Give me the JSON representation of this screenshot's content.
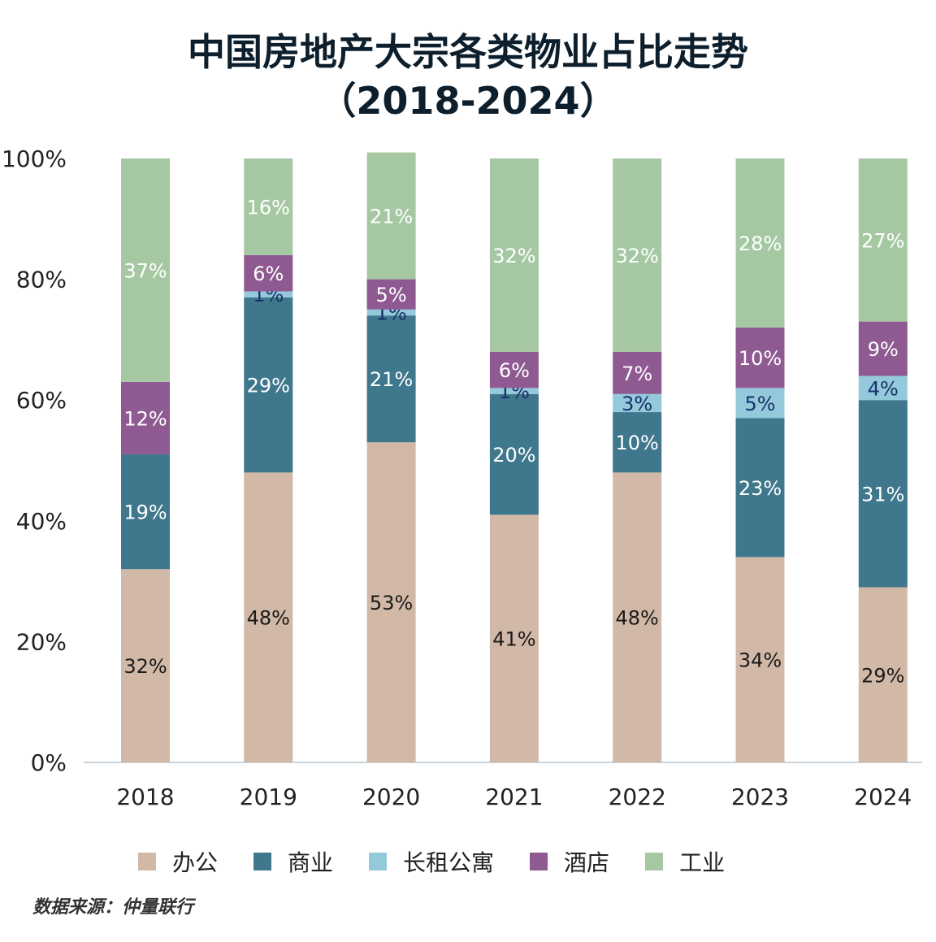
{
  "title_line1": "中国房地产大宗各类物业占比走势",
  "title_line2": "（2018-2024）",
  "source": "数据来源：仲量联行",
  "chart_data": {
    "type": "bar",
    "stacked": true,
    "title": "中国房地产大宗各类物业占比走势（2018-2024）",
    "categories": [
      "2018",
      "2019",
      "2020",
      "2021",
      "2022",
      "2023",
      "2024"
    ],
    "ylim": [
      0,
      100
    ],
    "y_ticks": [
      "0%",
      "20%",
      "40%",
      "60%",
      "80%",
      "100%"
    ],
    "legend_position": "bottom",
    "grid": false,
    "series": [
      {
        "name": "办公",
        "color": "#d2b8a6",
        "label_color": "#1a1a1a",
        "values": [
          32,
          48,
          53,
          41,
          48,
          34,
          29
        ]
      },
      {
        "name": "商业",
        "color": "#3f778c",
        "label_color": "#ffffff",
        "values": [
          19,
          29,
          21,
          20,
          10,
          23,
          31
        ]
      },
      {
        "name": "长租公寓",
        "color": "#93c9da",
        "label_color": "#1a2f6b",
        "values": [
          0,
          1,
          1,
          1,
          3,
          5,
          4
        ]
      },
      {
        "name": "酒店",
        "color": "#8e5a91",
        "label_color": "#ffffff",
        "values": [
          12,
          6,
          5,
          6,
          7,
          10,
          9
        ]
      },
      {
        "name": "工业",
        "color": "#a5c8a2",
        "label_color": "#ffffff",
        "values": [
          37,
          16,
          21,
          32,
          32,
          28,
          27
        ]
      }
    ]
  }
}
